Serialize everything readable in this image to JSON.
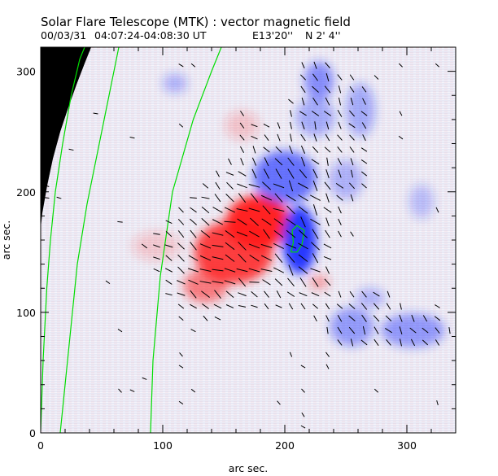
{
  "chart_data": {
    "type": "heatmap",
    "title": "Solar Flare Telescope (MTK) : vector magnetic field",
    "subtitle": {
      "date": "00/03/31",
      "time_range": "04:07:24-04:08:30 UT",
      "longitude": "E13'20''",
      "latitude": "N 2' 4''"
    },
    "xlabel": "arc sec.",
    "ylabel": "arc sec.",
    "xlim": [
      0,
      340
    ],
    "ylim": [
      0,
      320
    ],
    "x_ticks": [
      0,
      100,
      200,
      300
    ],
    "y_ticks": [
      0,
      100,
      200,
      300
    ],
    "legend": [],
    "colors": {
      "positive_field": "#ff2020",
      "negative_field": "#2030ff",
      "neutral_line": "#00dd00",
      "arrows": "#000000",
      "off_disk": "#000000"
    },
    "field_regions": [
      {
        "polarity": "positive",
        "cx": 178,
        "cy": 175,
        "rx": 26,
        "ry": 22,
        "strength": 1.0
      },
      {
        "polarity": "positive",
        "cx": 158,
        "cy": 150,
        "rx": 32,
        "ry": 26,
        "strength": 0.85
      },
      {
        "polarity": "positive",
        "cx": 135,
        "cy": 122,
        "rx": 18,
        "ry": 14,
        "strength": 0.55
      },
      {
        "polarity": "positive",
        "cx": 228,
        "cy": 125,
        "rx": 8,
        "ry": 6,
        "strength": 0.4
      },
      {
        "polarity": "positive",
        "cx": 95,
        "cy": 155,
        "rx": 20,
        "ry": 12,
        "strength": 0.18
      },
      {
        "polarity": "positive",
        "cx": 165,
        "cy": 255,
        "rx": 14,
        "ry": 12,
        "strength": 0.2
      },
      {
        "polarity": "negative",
        "cx": 212,
        "cy": 160,
        "rx": 14,
        "ry": 28,
        "strength": 0.95
      },
      {
        "polarity": "negative",
        "cx": 200,
        "cy": 212,
        "rx": 26,
        "ry": 22,
        "strength": 0.65
      },
      {
        "polarity": "negative",
        "cx": 225,
        "cy": 262,
        "rx": 16,
        "ry": 16,
        "strength": 0.35
      },
      {
        "polarity": "negative",
        "cx": 228,
        "cy": 292,
        "rx": 12,
        "ry": 16,
        "strength": 0.5
      },
      {
        "polarity": "negative",
        "cx": 262,
        "cy": 268,
        "rx": 12,
        "ry": 22,
        "strength": 0.35
      },
      {
        "polarity": "negative",
        "cx": 255,
        "cy": 88,
        "rx": 18,
        "ry": 16,
        "strength": 0.42
      },
      {
        "polarity": "negative",
        "cx": 305,
        "cy": 85,
        "rx": 26,
        "ry": 14,
        "strength": 0.45
      },
      {
        "polarity": "negative",
        "cx": 270,
        "cy": 112,
        "rx": 12,
        "ry": 8,
        "strength": 0.3
      },
      {
        "polarity": "negative",
        "cx": 250,
        "cy": 210,
        "rx": 14,
        "ry": 16,
        "strength": 0.3
      },
      {
        "polarity": "negative",
        "cx": 312,
        "cy": 192,
        "rx": 10,
        "ry": 14,
        "strength": 0.25
      },
      {
        "polarity": "negative",
        "cx": 110,
        "cy": 290,
        "rx": 10,
        "ry": 8,
        "strength": 0.3
      }
    ],
    "neutral_lines": [
      {
        "points": [
          [
            0,
            2
          ],
          [
            2,
            60
          ],
          [
            5,
            120
          ],
          [
            8,
            160
          ],
          [
            12,
            200
          ],
          [
            18,
            240
          ],
          [
            25,
            280
          ],
          [
            32,
            310
          ],
          [
            36,
            320
          ]
        ]
      },
      {
        "points": [
          [
            16,
            0
          ],
          [
            20,
            40
          ],
          [
            26,
            100
          ],
          [
            30,
            140
          ],
          [
            38,
            190
          ],
          [
            48,
            240
          ],
          [
            56,
            280
          ],
          [
            62,
            310
          ],
          [
            64,
            320
          ]
        ]
      },
      {
        "points": [
          [
            90,
            0
          ],
          [
            92,
            60
          ],
          [
            98,
            130
          ],
          [
            108,
            200
          ],
          [
            125,
            260
          ],
          [
            140,
            300
          ],
          [
            148,
            320
          ]
        ]
      },
      {
        "points": [
          [
            205,
            150
          ],
          [
            207,
            158
          ],
          [
            206,
            168
          ],
          [
            210,
            172
          ],
          [
            216,
            168
          ],
          [
            214,
            156
          ],
          [
            210,
            150
          ],
          [
            205,
            150
          ]
        ]
      }
    ],
    "arrow_field": {
      "grid_step": 10,
      "threshold": 0.25,
      "description": "transverse magnetic field vectors drawn as short black line segments"
    }
  }
}
